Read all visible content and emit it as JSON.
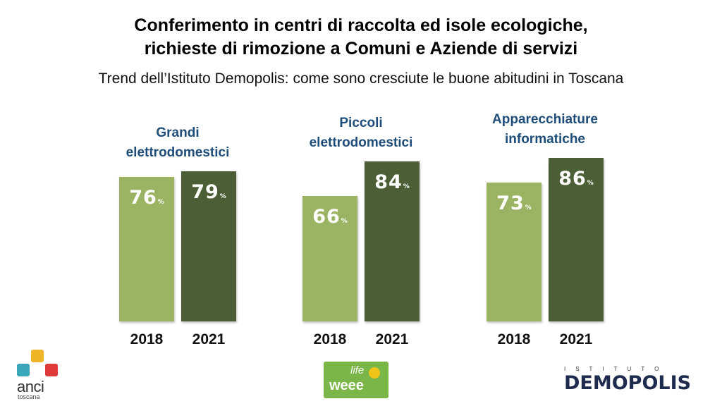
{
  "header": {
    "title_line1": "Conferimento in centri di raccolta ed isole ecologiche,",
    "title_line2": "richieste di rimozione a Comuni e Aziende di servizi",
    "subtitle": "Trend dell’Istituto Demopolis: come sono cresciute le buone abitudini in Toscana"
  },
  "chart_data": {
    "type": "bar",
    "unit": "%",
    "categories": [
      "2018",
      "2021"
    ],
    "groups": [
      {
        "title_line1": "Grandi",
        "title_line2": "elettrodomestici",
        "values": [
          76,
          79
        ],
        "labels": [
          "76",
          "79"
        ]
      },
      {
        "title_line1": "Piccoli",
        "title_line2": "elettrodomestici",
        "values": [
          66,
          84
        ],
        "labels": [
          "66",
          "84"
        ]
      },
      {
        "title_line1": "Apparecchiature",
        "title_line2": "informatiche",
        "values": [
          73,
          86
        ],
        "labels": [
          "73",
          "86"
        ]
      }
    ],
    "colors": {
      "2018": "#9bb463",
      "2021": "#4b5e35"
    }
  },
  "logos": {
    "anci": {
      "name": "anci",
      "sub": "toscana"
    },
    "life": {
      "top": "life",
      "bottom": "weee"
    },
    "demopolis": {
      "top": "ISTITUTO",
      "main": "DEMOPOLIS"
    }
  }
}
